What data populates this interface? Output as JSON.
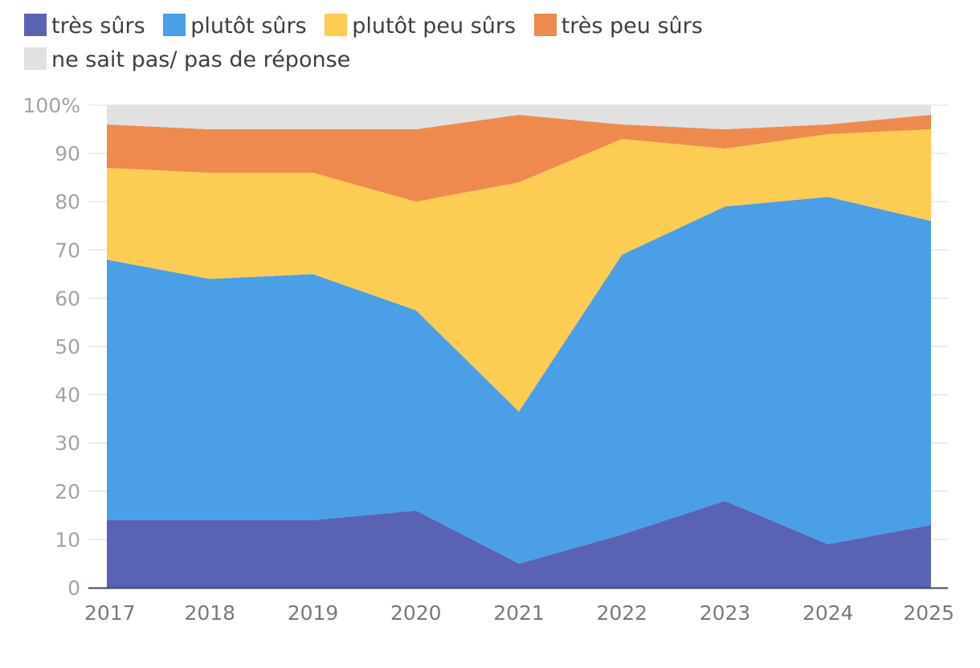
{
  "chart_data": {
    "type": "area",
    "stacked": true,
    "x": [
      "2017",
      "2018",
      "2019",
      "2020",
      "2021",
      "2022",
      "2023",
      "2024",
      "2025"
    ],
    "series": [
      {
        "name": "très sûrs",
        "color": "#5a63b3",
        "values": [
          14,
          14,
          14,
          16,
          5,
          11,
          18,
          9,
          13
        ]
      },
      {
        "name": "plutôt sûrs",
        "color": "#4a9fe6",
        "values": [
          54,
          50,
          51,
          41.5,
          31.5,
          58,
          61,
          72,
          63
        ]
      },
      {
        "name": "plutôt peu sûrs",
        "color": "#fdcc53",
        "values": [
          19,
          22,
          21,
          22.5,
          47.5,
          24,
          12,
          13,
          19
        ]
      },
      {
        "name": "très peu sûrs",
        "color": "#ef8a4e",
        "values": [
          9,
          9,
          9,
          15,
          14,
          3,
          4,
          2,
          3
        ]
      },
      {
        "name": "ne sait pas/ pas de réponse",
        "color": "#e1e1e1",
        "values": [
          4,
          5,
          5,
          5,
          2,
          4,
          5,
          4,
          2
        ]
      }
    ],
    "ylim": [
      0,
      100
    ],
    "yticks": [
      "0",
      "10",
      "20",
      "30",
      "40",
      "50",
      "60",
      "70",
      "80",
      "90",
      "100%"
    ],
    "grid": true,
    "legend": "top"
  }
}
